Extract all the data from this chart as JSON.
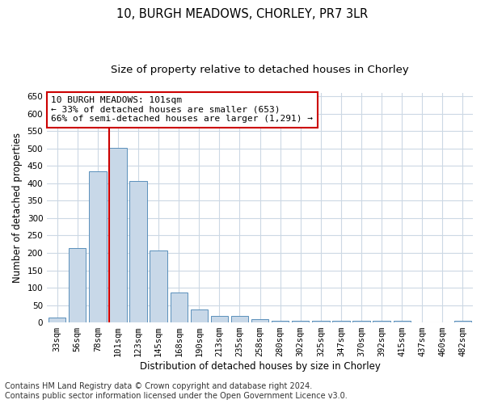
{
  "title": "10, BURGH MEADOWS, CHORLEY, PR7 3LR",
  "subtitle": "Size of property relative to detached houses in Chorley",
  "xlabel": "Distribution of detached houses by size in Chorley",
  "ylabel": "Number of detached properties",
  "categories": [
    "33sqm",
    "56sqm",
    "78sqm",
    "101sqm",
    "123sqm",
    "145sqm",
    "168sqm",
    "190sqm",
    "213sqm",
    "235sqm",
    "258sqm",
    "280sqm",
    "302sqm",
    "325sqm",
    "347sqm",
    "370sqm",
    "392sqm",
    "415sqm",
    "437sqm",
    "460sqm",
    "482sqm"
  ],
  "values": [
    15,
    213,
    435,
    502,
    407,
    207,
    85,
    38,
    18,
    18,
    10,
    5,
    5,
    5,
    5,
    5,
    5,
    5,
    0,
    0,
    5
  ],
  "bar_color": "#c8d8e8",
  "bar_edge_color": "#5a90bb",
  "highlight_index": 3,
  "highlight_line_color": "#cc0000",
  "annotation_line1": "10 BURGH MEADOWS: 101sqm",
  "annotation_line2": "← 33% of detached houses are smaller (653)",
  "annotation_line3": "66% of semi-detached houses are larger (1,291) →",
  "annotation_box_color": "#ffffff",
  "annotation_box_edge": "#cc0000",
  "ylim": [
    0,
    660
  ],
  "yticks": [
    0,
    50,
    100,
    150,
    200,
    250,
    300,
    350,
    400,
    450,
    500,
    550,
    600,
    650
  ],
  "footer1": "Contains HM Land Registry data © Crown copyright and database right 2024.",
  "footer2": "Contains public sector information licensed under the Open Government Licence v3.0.",
  "bg_color": "#ffffff",
  "grid_color": "#ccd8e4",
  "title_fontsize": 10.5,
  "subtitle_fontsize": 9.5,
  "axis_label_fontsize": 8.5,
  "tick_fontsize": 7.5,
  "annot_fontsize": 8,
  "footer_fontsize": 7
}
